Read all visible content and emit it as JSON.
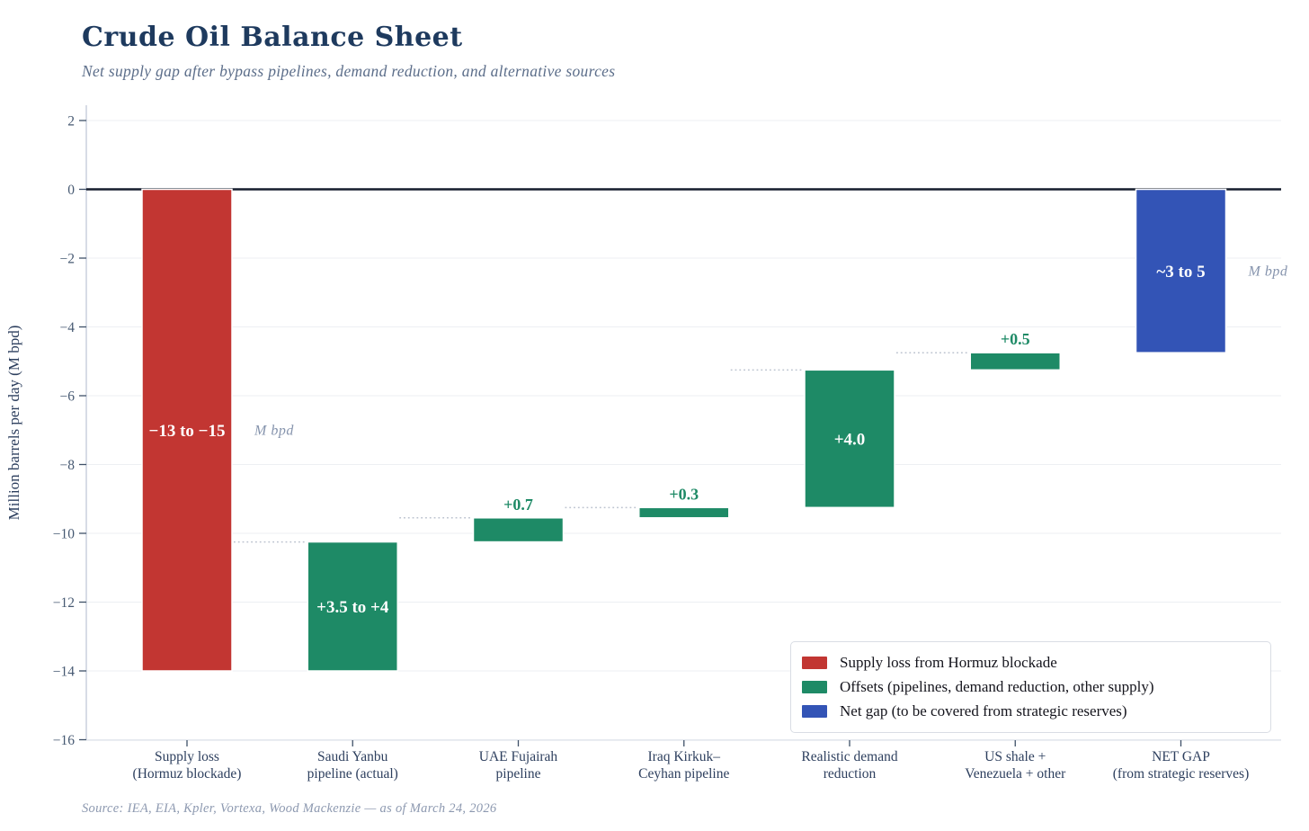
{
  "chart_data": {
    "type": "bar",
    "variant": "waterfall",
    "title": "Crude Oil Balance Sheet",
    "subtitle": "Net supply gap after bypass pipelines, demand reduction, and alternative sources",
    "source": "Source: IEA, EIA, Kpler, Vortexa, Wood Mackenzie — as of March 24, 2026",
    "ylabel": "Million barrels per day (M bpd)",
    "ylim": [
      -16,
      2
    ],
    "yticks": [
      2,
      0,
      -2,
      -4,
      -6,
      -8,
      -10,
      -12,
      -14,
      -16
    ],
    "grid": true,
    "unit_annotation": "M bpd",
    "colors": {
      "loss": "#c23632",
      "offset": "#1e8a66",
      "netgap": "#3354b6"
    },
    "bars": [
      {
        "id": "supply-loss-hormuz",
        "category": "Supply loss\n(Hormuz blockade)",
        "role": "loss",
        "start": 0,
        "end": -14,
        "value_label": "−13 to −15",
        "value_label_position": "inside",
        "unit_annotation": true
      },
      {
        "id": "saudi-yanbu-pipeline",
        "category": "Saudi Yanbu\npipeline (actual)",
        "role": "offset",
        "start": -14,
        "end": -10.25,
        "value_label": "+3.5 to +4",
        "value_label_position": "inside",
        "unit_annotation": false
      },
      {
        "id": "uae-fujairah-pipeline",
        "category": "UAE Fujairah\npipeline",
        "role": "offset",
        "start": -10.25,
        "end": -9.55,
        "value_label": "+0.7",
        "value_label_position": "above",
        "unit_annotation": false
      },
      {
        "id": "iraq-kirkuk-ceyhan-pipeline",
        "category": "Iraq Kirkuk–\nCeyhan pipeline",
        "role": "offset",
        "start": -9.55,
        "end": -9.25,
        "value_label": "+0.3",
        "value_label_position": "above",
        "unit_annotation": false
      },
      {
        "id": "realistic-demand-reduction",
        "category": "Realistic demand\nreduction",
        "role": "offset",
        "start": -9.25,
        "end": -5.25,
        "value_label": "+4.0",
        "value_label_position": "inside",
        "unit_annotation": false
      },
      {
        "id": "us-shale-venezuela-other",
        "category": "US shale +\nVenezuela + other",
        "role": "offset",
        "start": -5.25,
        "end": -4.75,
        "value_label": "+0.5",
        "value_label_position": "above",
        "unit_annotation": false
      },
      {
        "id": "net-gap",
        "category": "NET GAP\n(from strategic reserves)",
        "role": "netgap",
        "start": 0,
        "end": -4.75,
        "value_label": "~3 to 5",
        "value_label_position": "inside",
        "unit_annotation": true
      }
    ],
    "legend": {
      "position": "lower right",
      "items": [
        {
          "role": "loss",
          "label": "Supply loss from Hormuz blockade"
        },
        {
          "role": "offset",
          "label": "Offsets (pipelines, demand reduction, other supply)"
        },
        {
          "role": "netgap",
          "label": "Net gap (to be covered from strategic reserves)"
        }
      ]
    }
  }
}
